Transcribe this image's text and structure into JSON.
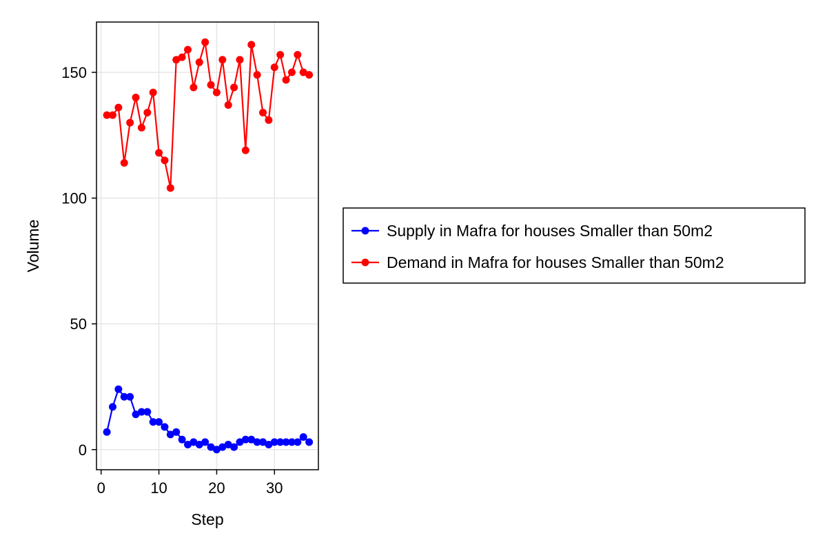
{
  "chart_data": {
    "type": "line",
    "title": "",
    "xlabel": "Step",
    "ylabel": "Volume",
    "xlim": [
      -0.8,
      37.6
    ],
    "ylim": [
      -8,
      170
    ],
    "xticks": [
      0,
      10,
      20,
      30
    ],
    "yticks": [
      0,
      50,
      100,
      150
    ],
    "grid": true,
    "legend_position": "right",
    "x": [
      1,
      2,
      3,
      4,
      5,
      6,
      7,
      8,
      9,
      10,
      11,
      12,
      13,
      14,
      15,
      16,
      17,
      18,
      19,
      20,
      21,
      22,
      23,
      24,
      25,
      26,
      27,
      28,
      29,
      30,
      31,
      32,
      33,
      34,
      35,
      36
    ],
    "series": [
      {
        "name": "Supply in Mafra for houses Smaller than 50m2",
        "color": "#0000ff",
        "values": [
          7,
          17,
          24,
          21,
          21,
          14,
          15,
          15,
          11,
          11,
          9,
          6,
          7,
          4,
          2,
          3,
          2,
          3,
          1,
          0,
          1,
          2,
          1,
          3,
          4,
          4,
          3,
          3,
          2,
          3,
          3,
          3,
          3,
          3,
          5,
          3
        ]
      },
      {
        "name": "Demand in Mafra for houses Smaller than 50m2",
        "color": "#ff0000",
        "values": [
          133,
          133,
          136,
          114,
          130,
          140,
          128,
          134,
          142,
          118,
          115,
          104,
          155,
          156,
          159,
          144,
          154,
          162,
          145,
          142,
          155,
          137,
          144,
          155,
          119,
          161,
          149,
          134,
          131,
          152,
          157,
          147,
          150,
          157,
          150,
          149
        ]
      }
    ]
  }
}
